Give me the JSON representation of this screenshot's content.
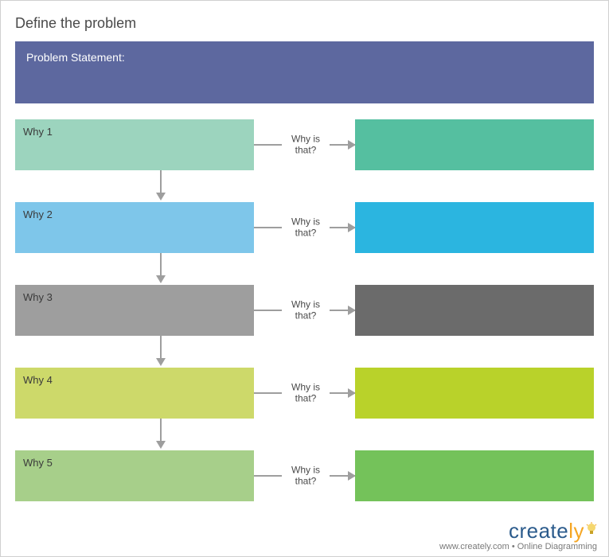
{
  "diagram": {
    "type": "flowchart",
    "title": "Define the problem",
    "background_color": "#ffffff",
    "arrow_color": "#9e9e9e",
    "connector_label": "Why is that?",
    "connector_label_color": "#4a4a4a",
    "problem_statement": {
      "label": "Problem Statement:",
      "bg_color": "#5d689f",
      "text_color": "#ffffff"
    },
    "rows": [
      {
        "why_label": "Why 1",
        "why_bg": "#9cd4be",
        "ans_bg": "#55bfa0"
      },
      {
        "why_label": "Why 2",
        "why_bg": "#7ec6ea",
        "ans_bg": "#2bb5e0"
      },
      {
        "why_label": "Why 3",
        "why_bg": "#9e9e9e",
        "ans_bg": "#6b6b6b"
      },
      {
        "why_label": "Why 4",
        "why_bg": "#cdd96a",
        "ans_bg": "#b9d22a"
      },
      {
        "why_label": "Why 5",
        "why_bg": "#a7cf8a",
        "ans_bg": "#74c25a"
      }
    ]
  },
  "footer": {
    "logo_text_main": "create",
    "logo_text_accent": "ly",
    "logo_color_main": "#2b5b8c",
    "logo_color_accent": "#f5a623",
    "tagline": "www.creately.com • Online Diagramming",
    "tagline_color": "#7a7a7a"
  }
}
